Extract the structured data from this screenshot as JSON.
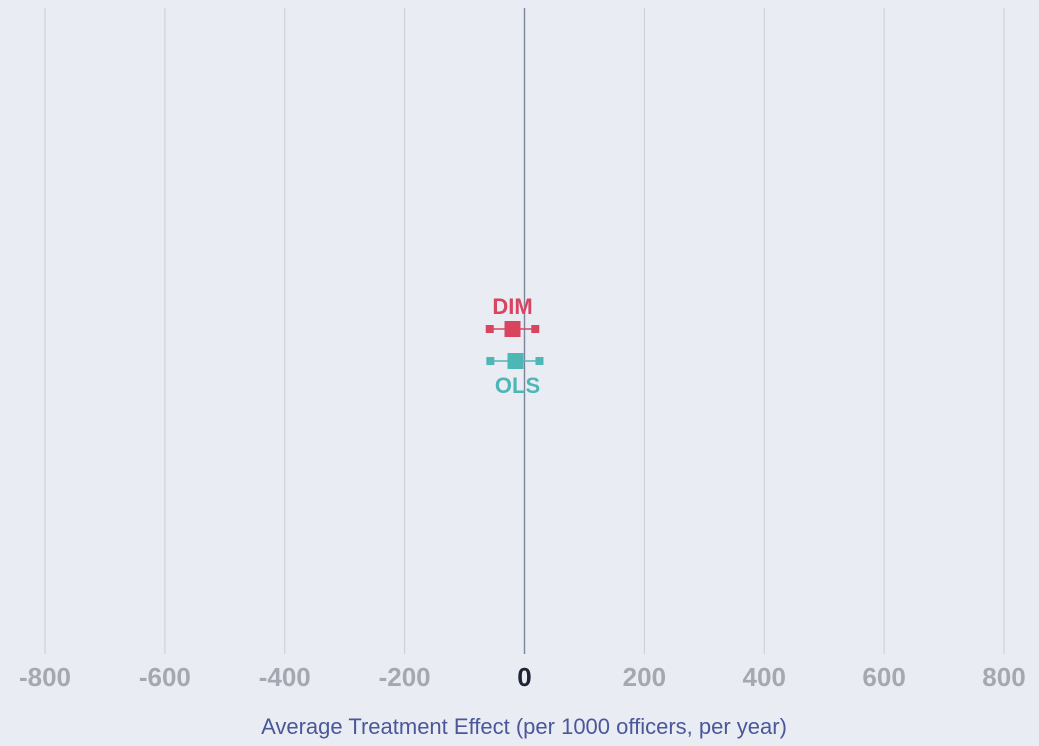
{
  "chart_data": {
    "type": "forest",
    "xlabel": "Average Treatment Effect (per 1000 officers, per year)",
    "xlim": [
      -800,
      800
    ],
    "xticks": [
      -800,
      -600,
      -400,
      -200,
      0,
      200,
      400,
      600,
      800
    ],
    "tick_labels": [
      "-800",
      "-600",
      "-400",
      "-200",
      "0",
      "200",
      "400",
      "600",
      "800"
    ],
    "grid": true,
    "series": [
      {
        "name": "DIM",
        "estimate": -20,
        "ci_low": -58,
        "ci_high": 18,
        "color": "#d9445f"
      },
      {
        "name": "OLS",
        "estimate": -15,
        "ci_low": -57,
        "ci_high": 25,
        "color": "#4fb6b6"
      }
    ]
  },
  "colors": {
    "background": "#e9ecf3",
    "grid": "#c9cdd6",
    "zero_line": "#7a8599",
    "tick_label": "#a5a8b0",
    "zero_tick_label": "#1e2433",
    "axis_title": "#4a5899"
  }
}
